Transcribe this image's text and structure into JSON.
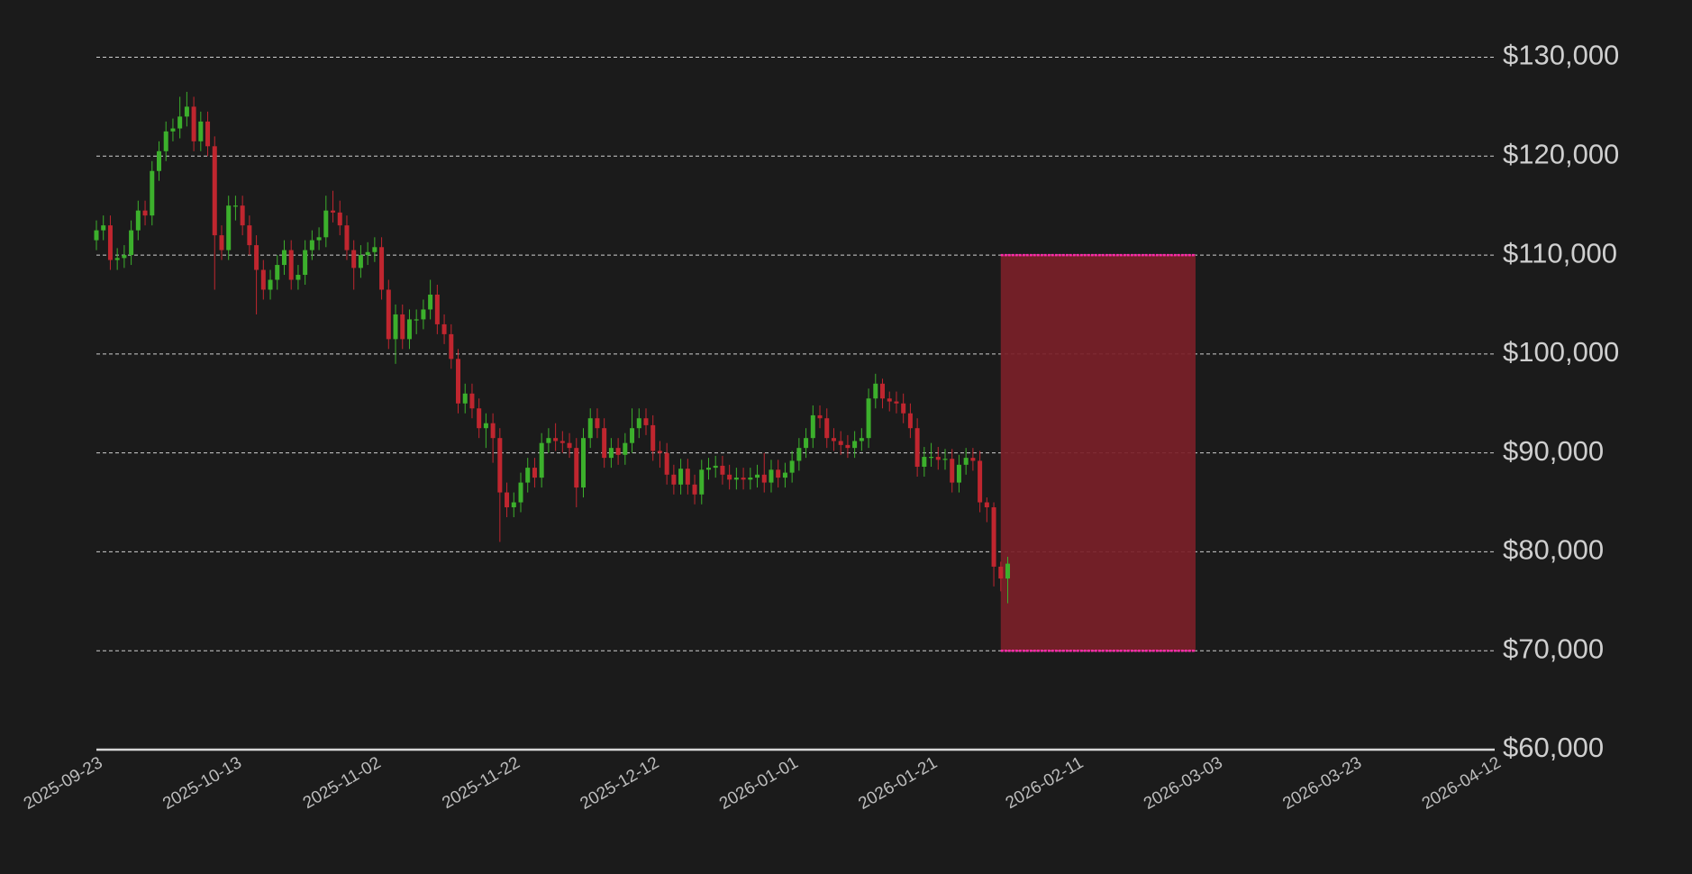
{
  "chart_data": {
    "type": "candlestick",
    "up_color": "#3cb02c",
    "down_color": "#c0262f",
    "grid": true,
    "xlim": [
      "2025-09-23",
      "2026-04-12"
    ],
    "xticks": [
      "2025-09-23",
      "2025-10-13",
      "2025-11-02",
      "2025-11-22",
      "2025-12-12",
      "2026-01-01",
      "2026-01-21",
      "2026-02-11",
      "2026-03-03",
      "2026-03-23",
      "2026-04-12"
    ],
    "ylim": [
      60000,
      130000
    ],
    "yticks": [
      {
        "value": 60000,
        "label": "$60,000"
      },
      {
        "value": 70000,
        "label": "$70,000"
      },
      {
        "value": 80000,
        "label": "$80,000"
      },
      {
        "value": 90000,
        "label": "$90,000"
      },
      {
        "value": 100000,
        "label": "$100,000"
      },
      {
        "value": 110000,
        "label": "$110,000"
      },
      {
        "value": 120000,
        "label": "$120,000"
      },
      {
        "value": 130000,
        "label": "$130,000"
      }
    ],
    "zone": {
      "x": [
        "2026-01-31",
        "2026-02-28"
      ],
      "y": [
        70000,
        110000
      ],
      "color": "#7a2028",
      "edge_color": "#ff2aa8"
    },
    "x": [
      "2025-09-23",
      "2025-09-24",
      "2025-09-25",
      "2025-09-26",
      "2025-09-27",
      "2025-09-28",
      "2025-09-29",
      "2025-09-30",
      "2025-10-01",
      "2025-10-02",
      "2025-10-03",
      "2025-10-04",
      "2025-10-05",
      "2025-10-06",
      "2025-10-07",
      "2025-10-08",
      "2025-10-09",
      "2025-10-10",
      "2025-10-11",
      "2025-10-12",
      "2025-10-13",
      "2025-10-14",
      "2025-10-15",
      "2025-10-16",
      "2025-10-17",
      "2025-10-18",
      "2025-10-19",
      "2025-10-20",
      "2025-10-21",
      "2025-10-22",
      "2025-10-23",
      "2025-10-24",
      "2025-10-25",
      "2025-10-26",
      "2025-10-27",
      "2025-10-28",
      "2025-10-29",
      "2025-10-30",
      "2025-10-31",
      "2025-11-01",
      "2025-11-02",
      "2025-11-03",
      "2025-11-04",
      "2025-11-05",
      "2025-11-06",
      "2025-11-07",
      "2025-11-08",
      "2025-11-09",
      "2025-11-10",
      "2025-11-11",
      "2025-11-12",
      "2025-11-13",
      "2025-11-14",
      "2025-11-15",
      "2025-11-16",
      "2025-11-17",
      "2025-11-18",
      "2025-11-19",
      "2025-11-20",
      "2025-11-21",
      "2025-11-22",
      "2025-11-23",
      "2025-11-24",
      "2025-11-25",
      "2025-11-26",
      "2025-11-27",
      "2025-11-28",
      "2025-11-29",
      "2025-11-30",
      "2025-12-01",
      "2025-12-02",
      "2025-12-03",
      "2025-12-04",
      "2025-12-05",
      "2025-12-06",
      "2025-12-07",
      "2025-12-08",
      "2025-12-09",
      "2025-12-10",
      "2025-12-11",
      "2025-12-12",
      "2025-12-13",
      "2025-12-14",
      "2025-12-15",
      "2025-12-16",
      "2025-12-17",
      "2025-12-18",
      "2025-12-19",
      "2025-12-20",
      "2025-12-21",
      "2025-12-22",
      "2025-12-23",
      "2025-12-24",
      "2025-12-25",
      "2025-12-26",
      "2025-12-27",
      "2025-12-28",
      "2025-12-29",
      "2025-12-30",
      "2025-12-31",
      "2026-01-01",
      "2026-01-02",
      "2026-01-03",
      "2026-01-04",
      "2026-01-05",
      "2026-01-06",
      "2026-01-07",
      "2026-01-08",
      "2026-01-09",
      "2026-01-10",
      "2026-01-11",
      "2026-01-12",
      "2026-01-13",
      "2026-01-14",
      "2026-01-15",
      "2026-01-16",
      "2026-01-17",
      "2026-01-18",
      "2026-01-19",
      "2026-01-20",
      "2026-01-21",
      "2026-01-22",
      "2026-01-23",
      "2026-01-24",
      "2026-01-25",
      "2026-01-26",
      "2026-01-27",
      "2026-01-28",
      "2026-01-29",
      "2026-01-30",
      "2026-01-31",
      "2026-02-01"
    ],
    "open": [
      111500,
      112500,
      113000,
      109500,
      109700,
      110000,
      112500,
      114500,
      114000,
      118500,
      120500,
      122500,
      122800,
      124000,
      125000,
      121500,
      123500,
      121000,
      112000,
      110500,
      115000,
      115000,
      113000,
      111000,
      108500,
      106500,
      107500,
      109000,
      110500,
      107500,
      108000,
      110500,
      111500,
      111800,
      114500,
      114300,
      113000,
      110500,
      108700,
      110000,
      110300,
      110800,
      106500,
      101500,
      104000,
      101500,
      103500,
      103500,
      104500,
      106000,
      103000,
      102000,
      99500,
      95000,
      96000,
      94500,
      92500,
      93000,
      91500,
      86000,
      84500,
      85000,
      87000,
      88500,
      87500,
      91000,
      91500,
      91200,
      91000,
      90500,
      86500,
      91500,
      93500,
      92500,
      89500,
      90500,
      89800,
      91000,
      92500,
      93500,
      92800,
      90200,
      90000,
      87800,
      86800,
      88400,
      86800,
      85800,
      88300,
      88500,
      88700,
      87800,
      87300,
      87500,
      87300,
      87500,
      87800,
      87000,
      88300,
      87500,
      88000,
      89200,
      90500,
      91500,
      93800,
      93500,
      91500,
      91200,
      90800,
      90500,
      91200,
      91500,
      95500,
      97000,
      95500,
      95200,
      95000,
      94000,
      92500,
      88600,
      89600,
      89600,
      89300,
      89400,
      87000,
      88800,
      89500,
      89200,
      85000,
      84500,
      78500,
      77300
    ],
    "high": [
      113500,
      114000,
      114000,
      110700,
      111000,
      113500,
      115500,
      115500,
      119500,
      121500,
      123500,
      123800,
      126000,
      126500,
      126000,
      124500,
      124500,
      122000,
      113000,
      116000,
      116000,
      116000,
      114000,
      112000,
      109500,
      108500,
      110000,
      111500,
      111500,
      109000,
      111500,
      112500,
      112800,
      116000,
      116500,
      115500,
      114000,
      111500,
      111000,
      111300,
      111800,
      111800,
      107500,
      105000,
      105000,
      104500,
      104500,
      105500,
      107500,
      107000,
      104000,
      103000,
      100500,
      97000,
      97000,
      95500,
      94000,
      94000,
      92500,
      87000,
      86000,
      88000,
      89500,
      89500,
      92000,
      92500,
      93000,
      92200,
      92000,
      91500,
      92500,
      94500,
      94500,
      93500,
      91500,
      91500,
      92000,
      94500,
      94500,
      94500,
      93800,
      91200,
      91000,
      88800,
      89400,
      89400,
      87800,
      89300,
      89500,
      89700,
      89700,
      88800,
      88500,
      88500,
      88500,
      88800,
      90000,
      89300,
      89300,
      89000,
      90200,
      91500,
      92500,
      94800,
      94800,
      94500,
      92500,
      92200,
      91800,
      92200,
      92500,
      96500,
      98000,
      97500,
      96200,
      96200,
      96000,
      95000,
      93500,
      90600,
      91000,
      90600,
      90400,
      90400,
      89800,
      90500,
      90500,
      90200,
      85500,
      85000,
      79000,
      79500
    ],
    "low": [
      110500,
      111500,
      108500,
      108500,
      108700,
      109000,
      111500,
      113000,
      113000,
      117500,
      119500,
      121500,
      121800,
      123000,
      120500,
      120500,
      120000,
      106500,
      109500,
      109500,
      113500,
      112000,
      110000,
      104000,
      105500,
      105500,
      106500,
      108000,
      106500,
      106500,
      107000,
      109500,
      110500,
      110800,
      113300,
      112000,
      109500,
      106500,
      107700,
      109000,
      109300,
      105500,
      100500,
      99000,
      100500,
      100500,
      102000,
      102500,
      103500,
      102000,
      101000,
      98500,
      94000,
      94000,
      93500,
      91500,
      90500,
      89000,
      81000,
      83500,
      83500,
      84000,
      86000,
      86500,
      86500,
      90000,
      90200,
      90000,
      89500,
      84500,
      85500,
      90500,
      91500,
      88500,
      88500,
      88800,
      88800,
      90000,
      91500,
      91800,
      89200,
      88500,
      86800,
      85800,
      85800,
      85800,
      84800,
      84800,
      87300,
      87500,
      86800,
      86300,
      86300,
      86300,
      86300,
      86500,
      86000,
      86000,
      86500,
      86500,
      87000,
      88200,
      89500,
      90500,
      92500,
      90500,
      90200,
      89800,
      89500,
      89500,
      90200,
      90500,
      94500,
      94500,
      94200,
      94000,
      93000,
      91500,
      87600,
      87600,
      88600,
      88300,
      88300,
      86000,
      86000,
      87800,
      88200,
      84000,
      83000,
      76500,
      76000,
      74800
    ],
    "close": [
      112500,
      113000,
      109500,
      109700,
      110000,
      112500,
      114500,
      114000,
      118500,
      120500,
      122500,
      122800,
      124000,
      125000,
      121500,
      123500,
      121000,
      112000,
      110500,
      115000,
      115000,
      113000,
      111000,
      108500,
      106500,
      107500,
      109000,
      110500,
      107500,
      108000,
      110500,
      111500,
      111800,
      114500,
      114300,
      113000,
      110500,
      108700,
      110000,
      110300,
      110800,
      106500,
      101500,
      104000,
      101500,
      103500,
      103500,
      104500,
      106000,
      103000,
      102000,
      99500,
      95000,
      96000,
      94500,
      92500,
      93000,
      91500,
      86000,
      84500,
      85000,
      87000,
      88500,
      87500,
      91000,
      91500,
      91200,
      91000,
      90500,
      86500,
      91500,
      93500,
      92500,
      89500,
      90500,
      89800,
      91000,
      92500,
      93500,
      92800,
      90200,
      90000,
      87800,
      86800,
      88400,
      86800,
      85800,
      88300,
      88500,
      88700,
      87800,
      87300,
      87500,
      87300,
      87500,
      87800,
      87000,
      88300,
      87500,
      88000,
      89200,
      90500,
      91500,
      93800,
      93500,
      91500,
      91200,
      90800,
      90500,
      91200,
      91500,
      95500,
      97000,
      95500,
      95200,
      95000,
      94000,
      92500,
      88600,
      89600,
      89600,
      89300,
      89400,
      87000,
      88800,
      89500,
      89200,
      85000,
      84500,
      78500,
      77300,
      78800
    ]
  }
}
